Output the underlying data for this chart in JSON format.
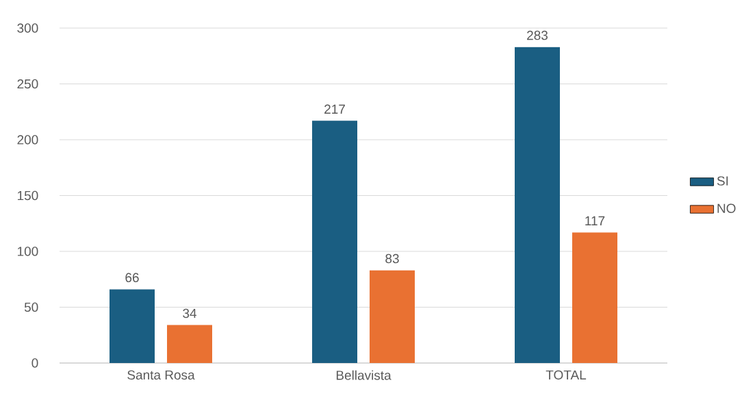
{
  "chart_data": {
    "type": "bar",
    "categories": [
      "Santa Rosa",
      "Bellavista",
      "TOTAL"
    ],
    "series": [
      {
        "name": "SI",
        "color": "#1a5e82",
        "values": [
          66,
          217,
          283
        ]
      },
      {
        "name": "NO",
        "color": "#e97132",
        "values": [
          34,
          83,
          117
        ]
      }
    ],
    "ylim": [
      0,
      300
    ],
    "yticks": [
      0,
      50,
      100,
      150,
      200,
      250,
      300
    ],
    "grid": "y",
    "legend": "right",
    "data_labels": true
  }
}
